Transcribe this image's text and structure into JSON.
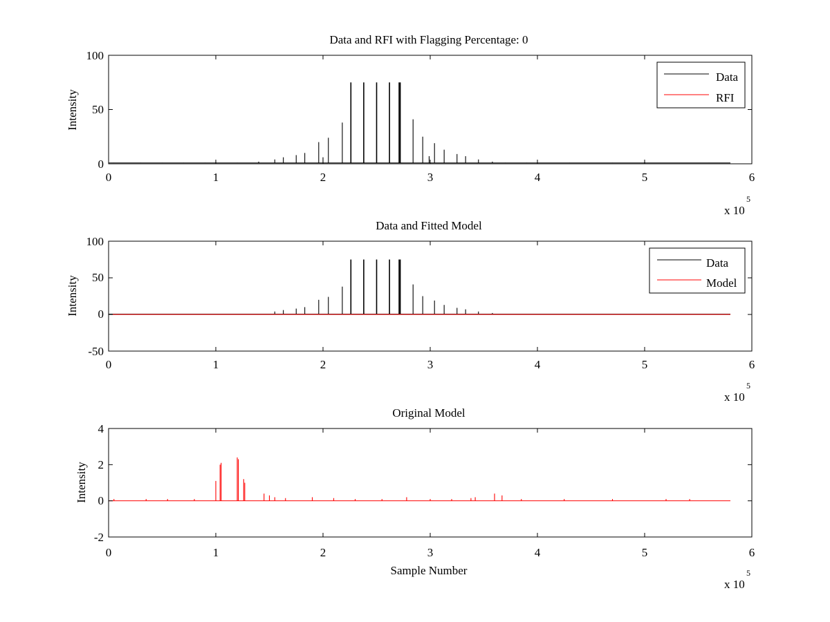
{
  "figure": {
    "background": "#ffffff",
    "data_color": "#000000",
    "model_color": "#ff0000"
  },
  "chart_data": [
    {
      "type": "line",
      "title": "Data and RFI with Flagging Percentage: 0",
      "ylabel": "Intensity",
      "xlabel": "",
      "xlim": [
        0,
        6
      ],
      "ylim": [
        0,
        100
      ],
      "xticks": [
        "0",
        "1",
        "2",
        "3",
        "4",
        "5",
        "6"
      ],
      "yticks": [
        "0",
        "50",
        "100"
      ],
      "x_multiplier": {
        "base": "x 10",
        "exponent": "5"
      },
      "legend": {
        "placement": "top-right",
        "entries": [
          "Data",
          "RFI"
        ]
      },
      "grid": false,
      "series": [
        {
          "name": "Data",
          "color": "#000000",
          "style": "spikes",
          "baseline": 0.8,
          "spikes": [
            [
              0.05,
              1
            ],
            [
              0.3,
              1
            ],
            [
              0.5,
              1
            ],
            [
              0.7,
              1
            ],
            [
              0.9,
              1
            ],
            [
              1.0,
              2
            ],
            [
              1.2,
              1
            ],
            [
              1.4,
              2
            ],
            [
              1.55,
              4
            ],
            [
              1.63,
              6
            ],
            [
              1.75,
              8
            ],
            [
              1.83,
              10
            ],
            [
              1.96,
              20
            ],
            [
              2.0,
              6
            ],
            [
              2.05,
              24
            ],
            [
              2.18,
              38
            ],
            [
              2.26,
              75
            ],
            [
              2.38,
              75
            ],
            [
              2.5,
              75
            ],
            [
              2.62,
              75
            ],
            [
              2.71,
              75
            ],
            [
              2.72,
              75
            ],
            [
              2.84,
              41
            ],
            [
              2.93,
              25
            ],
            [
              2.99,
              7
            ],
            [
              3.04,
              19
            ],
            [
              3.13,
              13
            ],
            [
              3.25,
              9
            ],
            [
              3.33,
              7
            ],
            [
              3.45,
              4
            ],
            [
              3.58,
              2
            ],
            [
              3.7,
              1
            ],
            [
              3.9,
              1
            ],
            [
              4.3,
              1
            ],
            [
              4.7,
              1
            ],
            [
              5.0,
              2
            ],
            [
              5.6,
              1
            ]
          ]
        },
        {
          "name": "RFI",
          "color": "#ff0000",
          "style": "line",
          "values": []
        }
      ]
    },
    {
      "type": "line",
      "title": "Data and Fitted Model",
      "ylabel": "Intensity",
      "xlabel": "",
      "xlim": [
        0,
        6
      ],
      "ylim": [
        -50,
        100
      ],
      "xticks": [
        "0",
        "1",
        "2",
        "3",
        "4",
        "5",
        "6"
      ],
      "yticks": [
        "-50",
        "0",
        "50",
        "100"
      ],
      "x_multiplier": {
        "base": "x 10",
        "exponent": "5"
      },
      "legend": {
        "placement": "top-right",
        "entries": [
          "Data",
          "Model"
        ]
      },
      "grid": false,
      "series": [
        {
          "name": "Data",
          "color": "#000000",
          "style": "spikes",
          "baseline": 0.5,
          "spikes": [
            [
              1.55,
              4
            ],
            [
              1.63,
              6
            ],
            [
              1.75,
              8
            ],
            [
              1.83,
              10
            ],
            [
              1.96,
              20
            ],
            [
              2.05,
              24
            ],
            [
              2.18,
              38
            ],
            [
              2.26,
              75
            ],
            [
              2.38,
              75
            ],
            [
              2.5,
              75
            ],
            [
              2.62,
              75
            ],
            [
              2.71,
              75
            ],
            [
              2.72,
              75
            ],
            [
              2.84,
              41
            ],
            [
              2.93,
              25
            ],
            [
              3.04,
              19
            ],
            [
              3.13,
              13
            ],
            [
              3.25,
              9
            ],
            [
              3.33,
              7
            ],
            [
              3.45,
              4
            ],
            [
              3.58,
              2
            ]
          ]
        },
        {
          "name": "Model",
          "color": "#ff0000",
          "style": "line",
          "x": [
            0,
            5.8
          ],
          "values": [
            0,
            0
          ]
        }
      ]
    },
    {
      "type": "line",
      "title": "Original Model",
      "ylabel": "Intensity",
      "xlabel": "Sample Number",
      "xlim": [
        0,
        6
      ],
      "ylim": [
        -2,
        4
      ],
      "xticks": [
        "0",
        "1",
        "2",
        "3",
        "4",
        "5",
        "6"
      ],
      "yticks": [
        "-2",
        "0",
        "2",
        "4"
      ],
      "x_multiplier": {
        "base": "x 10",
        "exponent": "5"
      },
      "legend": null,
      "grid": false,
      "series": [
        {
          "name": "",
          "color": "#ff0000",
          "style": "spikes",
          "baseline": 0,
          "spikes": [
            [
              0.05,
              0.1
            ],
            [
              0.35,
              0.1
            ],
            [
              0.55,
              0.1
            ],
            [
              0.8,
              0.1
            ],
            [
              1.0,
              1.1
            ],
            [
              1.04,
              2.0
            ],
            [
              1.05,
              2.1
            ],
            [
              1.2,
              2.4
            ],
            [
              1.21,
              2.3
            ],
            [
              1.26,
              1.2
            ],
            [
              1.27,
              1.0
            ],
            [
              1.45,
              0.4
            ],
            [
              1.5,
              0.3
            ],
            [
              1.55,
              0.2
            ],
            [
              1.65,
              0.15
            ],
            [
              1.9,
              0.2
            ],
            [
              2.1,
              0.15
            ],
            [
              2.3,
              0.1
            ],
            [
              2.55,
              0.1
            ],
            [
              2.78,
              0.2
            ],
            [
              3.0,
              0.1
            ],
            [
              3.2,
              0.1
            ],
            [
              3.38,
              0.15
            ],
            [
              3.42,
              0.2
            ],
            [
              3.6,
              0.4
            ],
            [
              3.67,
              0.3
            ],
            [
              3.85,
              0.1
            ],
            [
              4.25,
              0.1
            ],
            [
              4.7,
              0.1
            ],
            [
              5.2,
              0.1
            ],
            [
              5.42,
              0.1
            ]
          ]
        }
      ]
    }
  ]
}
